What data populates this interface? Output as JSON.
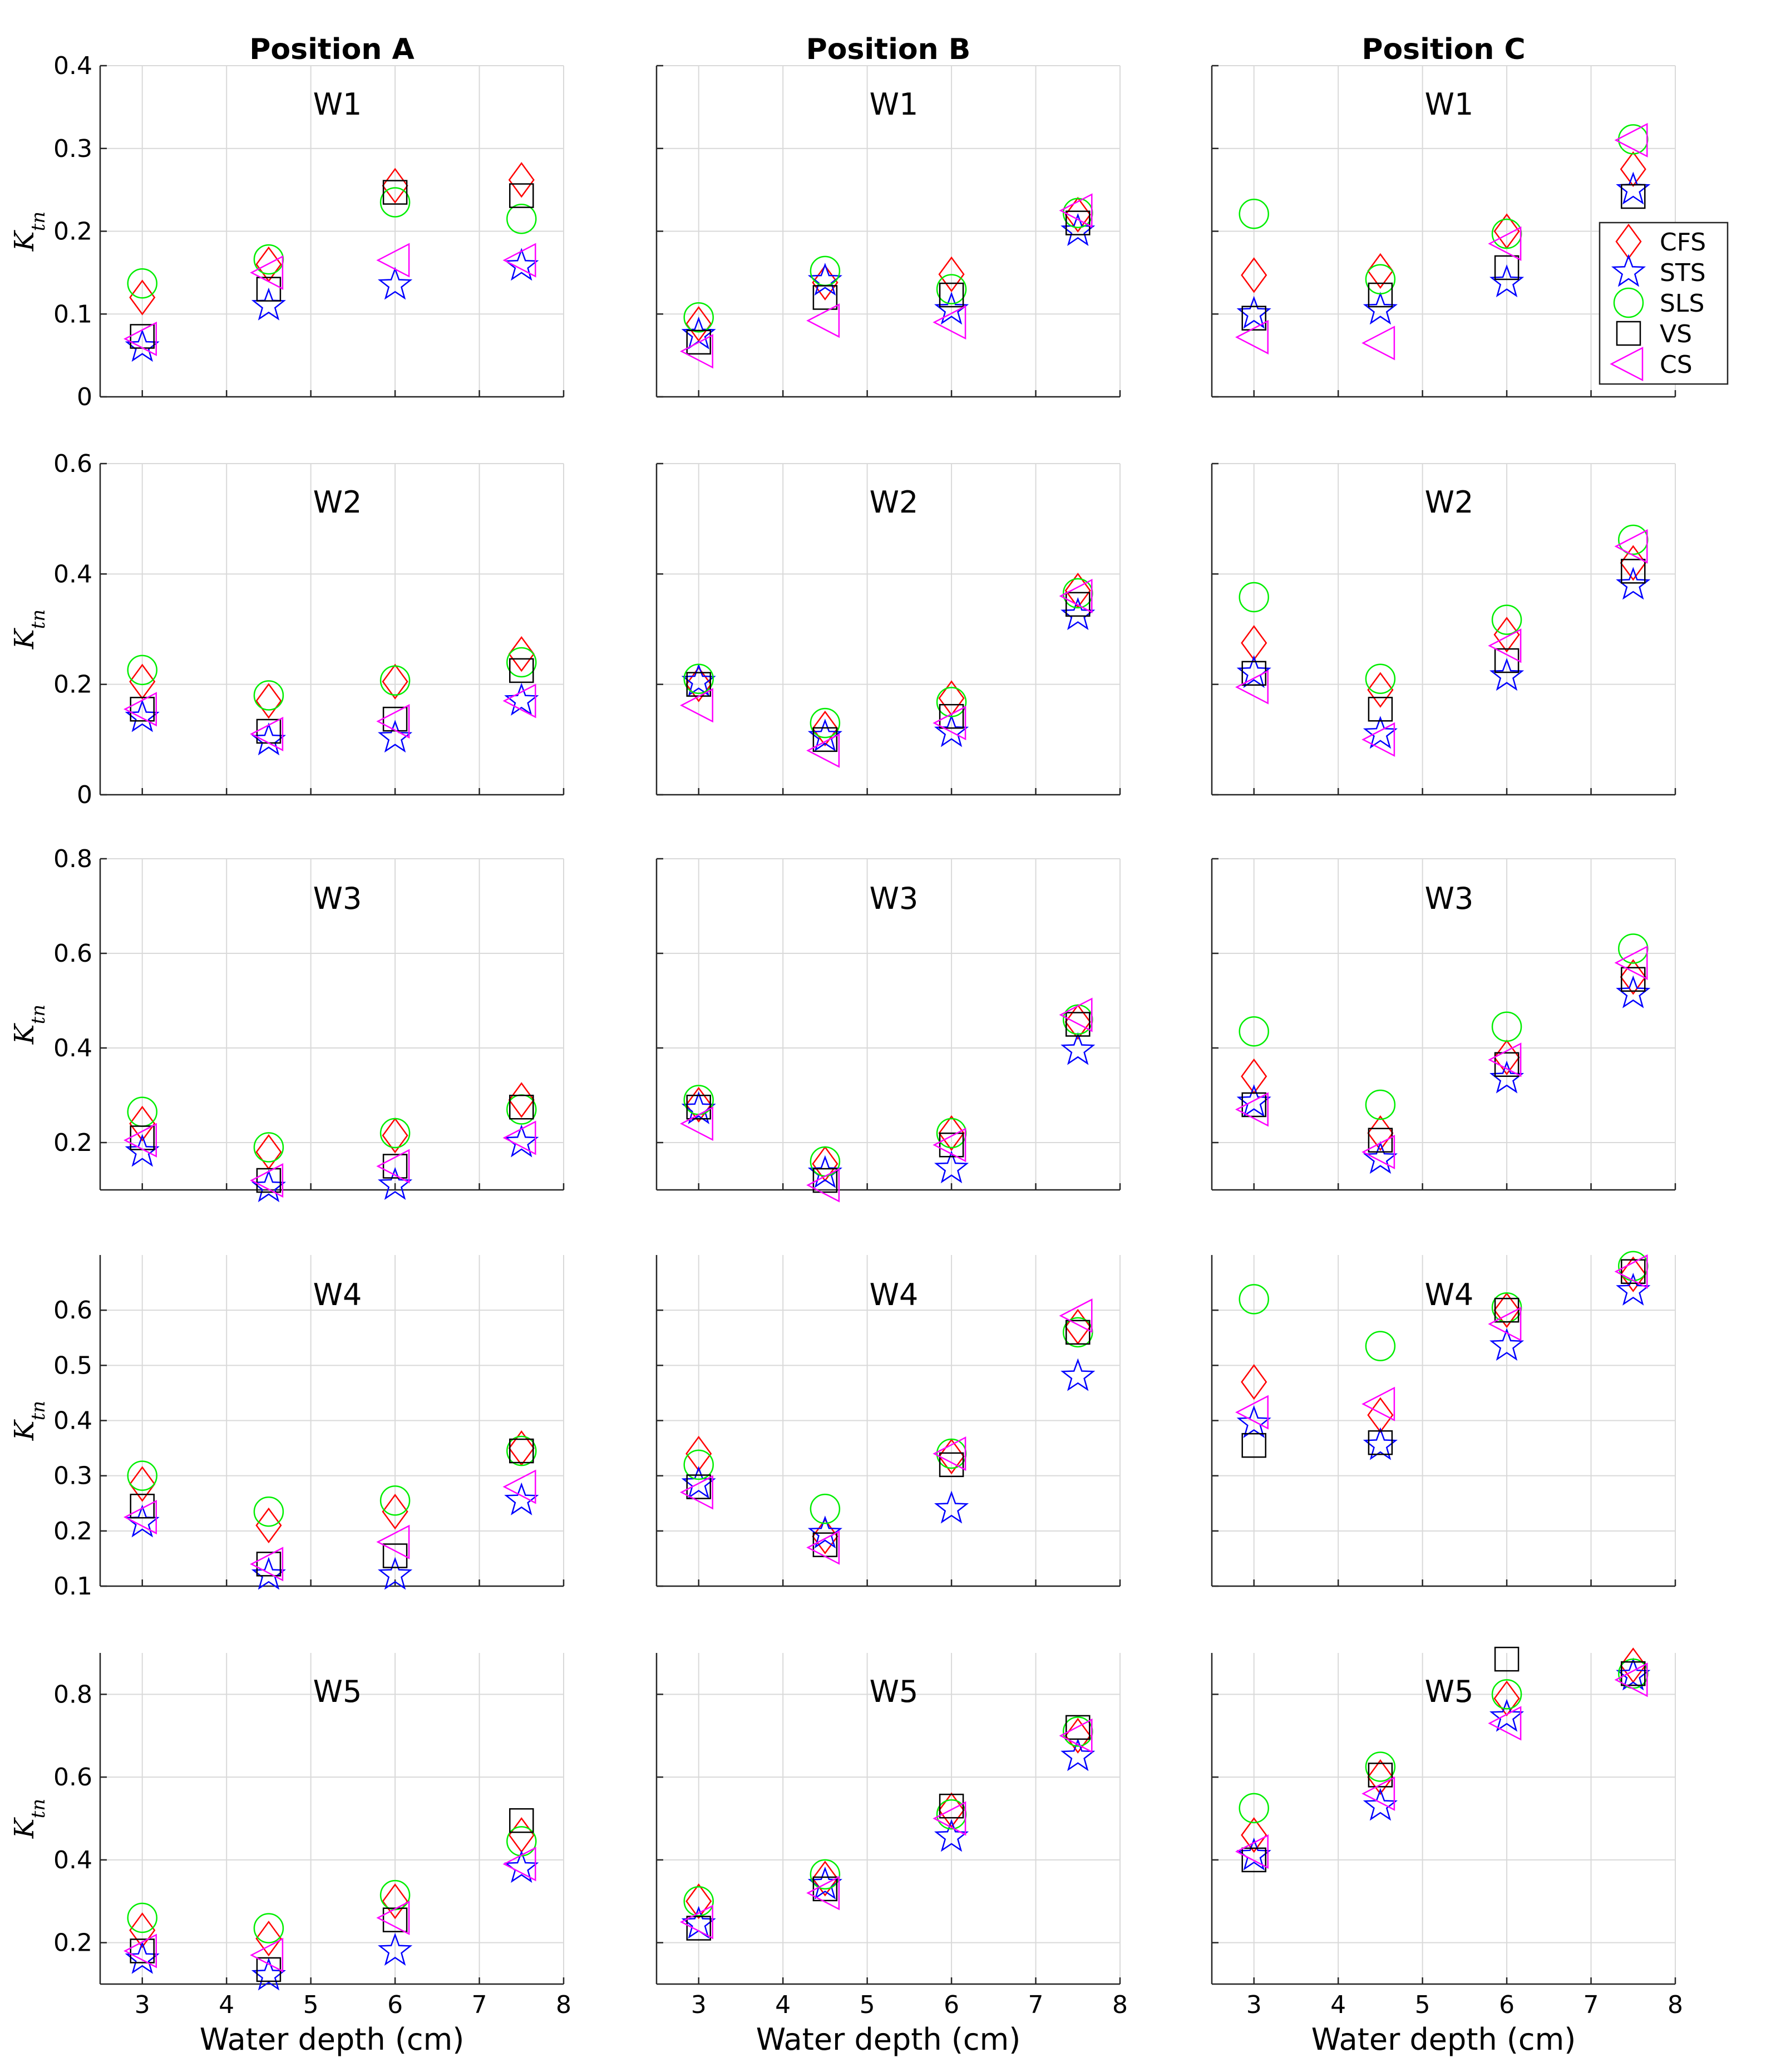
{
  "figure": {
    "x_label": "Water depth (cm)",
    "y_label_main": "K",
    "y_label_sub": "tn"
  },
  "legend": {
    "location": "right of top-right panel",
    "entries": [
      {
        "key": "CFS",
        "label": "CFS",
        "marker": "diamond",
        "color": "#ff0000"
      },
      {
        "key": "STS",
        "label": "STS",
        "marker": "pentagram",
        "color": "#0000ff"
      },
      {
        "key": "SLS",
        "label": "SLS",
        "marker": "circle",
        "color": "#00ee00"
      },
      {
        "key": "VS",
        "label": "VS",
        "marker": "square",
        "color": "#000000"
      },
      {
        "key": "CS",
        "label": "CS",
        "marker": "triangle-left",
        "color": "#ff00ff"
      }
    ]
  },
  "chart_data": [
    {
      "type": "scatter",
      "title": "Position A",
      "label": "W1",
      "xlabel": "",
      "ylabel": "Ktn",
      "xlim": [
        2.5,
        8
      ],
      "ylim": [
        0,
        0.4
      ],
      "xticks": [
        3,
        4,
        5,
        6,
        7,
        8
      ],
      "yticks": [
        0,
        0.1,
        0.2,
        0.3,
        0.4
      ],
      "x": [
        3,
        4.5,
        6,
        7.5
      ],
      "series": [
        {
          "name": "CFS",
          "values": [
            0.12,
            0.16,
            0.255,
            0.262
          ]
        },
        {
          "name": "STS",
          "values": [
            0.06,
            0.11,
            0.135,
            0.158
          ]
        },
        {
          "name": "SLS",
          "values": [
            0.137,
            0.166,
            0.235,
            0.215
          ]
        },
        {
          "name": "VS",
          "values": [
            0.073,
            0.13,
            0.247,
            0.243
          ]
        },
        {
          "name": "CS",
          "values": [
            0.07,
            0.15,
            0.165,
            0.165
          ]
        }
      ]
    },
    {
      "type": "scatter",
      "title": "Position B",
      "label": "W1",
      "xlabel": "",
      "ylabel": "",
      "xlim": [
        2.5,
        8
      ],
      "ylim": [
        0,
        0.4
      ],
      "xticks": [
        3,
        4,
        5,
        6,
        7,
        8
      ],
      "yticks": [
        0,
        0.1,
        0.2,
        0.3,
        0.4
      ],
      "x": [
        3,
        4.5,
        6,
        7.5
      ],
      "series": [
        {
          "name": "CFS",
          "values": [
            0.088,
            0.138,
            0.148,
            0.22
          ]
        },
        {
          "name": "STS",
          "values": [
            0.075,
            0.14,
            0.105,
            0.2
          ]
        },
        {
          "name": "SLS",
          "values": [
            0.096,
            0.152,
            0.13,
            0.222
          ]
        },
        {
          "name": "VS",
          "values": [
            0.066,
            0.12,
            0.123,
            0.21
          ]
        },
        {
          "name": "CS",
          "values": [
            0.055,
            0.092,
            0.09,
            0.225
          ]
        }
      ]
    },
    {
      "type": "scatter",
      "title": "Position C",
      "label": "W1",
      "xlabel": "",
      "ylabel": "",
      "xlim": [
        2.5,
        8
      ],
      "ylim": [
        0,
        0.4
      ],
      "xticks": [
        3,
        4,
        5,
        6,
        7,
        8
      ],
      "yticks": [
        0,
        0.1,
        0.2,
        0.3,
        0.4
      ],
      "x": [
        3,
        4.5,
        6,
        7.5
      ],
      "series": [
        {
          "name": "CFS",
          "values": [
            0.147,
            0.152,
            0.2,
            0.275
          ]
        },
        {
          "name": "STS",
          "values": [
            0.1,
            0.105,
            0.138,
            0.25
          ]
        },
        {
          "name": "SLS",
          "values": [
            0.221,
            0.142,
            0.197,
            0.311
          ]
        },
        {
          "name": "VS",
          "values": [
            0.095,
            0.123,
            0.156,
            0.242
          ]
        },
        {
          "name": "CS",
          "values": [
            0.072,
            0.065,
            0.185,
            0.31
          ]
        }
      ]
    },
    {
      "type": "scatter",
      "title": "",
      "label": "W2",
      "xlabel": "",
      "ylabel": "Ktn",
      "xlim": [
        2.5,
        8
      ],
      "ylim": [
        0,
        0.6
      ],
      "xticks": [
        3,
        4,
        5,
        6,
        7,
        8
      ],
      "yticks": [
        0,
        0.2,
        0.4,
        0.6
      ],
      "x": [
        3,
        4.5,
        6,
        7.5
      ],
      "series": [
        {
          "name": "CFS",
          "values": [
            0.205,
            0.17,
            0.205,
            0.255
          ]
        },
        {
          "name": "STS",
          "values": [
            0.14,
            0.098,
            0.103,
            0.17
          ]
        },
        {
          "name": "SLS",
          "values": [
            0.226,
            0.18,
            0.207,
            0.24
          ]
        },
        {
          "name": "VS",
          "values": [
            0.155,
            0.115,
            0.137,
            0.225
          ]
        },
        {
          "name": "CS",
          "values": [
            0.155,
            0.11,
            0.133,
            0.17
          ]
        }
      ]
    },
    {
      "type": "scatter",
      "title": "",
      "label": "W2",
      "xlabel": "",
      "ylabel": "",
      "xlim": [
        2.5,
        8
      ],
      "ylim": [
        0,
        0.6
      ],
      "xticks": [
        3,
        4,
        5,
        6,
        7,
        8
      ],
      "yticks": [
        0,
        0.2,
        0.4,
        0.6
      ],
      "x": [
        3,
        4.5,
        6,
        7.5
      ],
      "series": [
        {
          "name": "CFS",
          "values": [
            0.2,
            0.12,
            0.175,
            0.37
          ]
        },
        {
          "name": "STS",
          "values": [
            0.205,
            0.105,
            0.113,
            0.325
          ]
        },
        {
          "name": "SLS",
          "values": [
            0.21,
            0.13,
            0.168,
            0.365
          ]
        },
        {
          "name": "VS",
          "values": [
            0.2,
            0.1,
            0.142,
            0.345
          ]
        },
        {
          "name": "CS",
          "values": [
            0.162,
            0.08,
            0.13,
            0.36
          ]
        }
      ]
    },
    {
      "type": "scatter",
      "title": "",
      "label": "W2",
      "xlabel": "",
      "ylabel": "",
      "xlim": [
        2.5,
        8
      ],
      "ylim": [
        0,
        0.6
      ],
      "xticks": [
        3,
        4,
        5,
        6,
        7,
        8
      ],
      "yticks": [
        0,
        0.2,
        0.4,
        0.6
      ],
      "x": [
        3,
        4.5,
        6,
        7.5
      ],
      "series": [
        {
          "name": "CFS",
          "values": [
            0.275,
            0.19,
            0.29,
            0.42
          ]
        },
        {
          "name": "STS",
          "values": [
            0.22,
            0.11,
            0.215,
            0.38
          ]
        },
        {
          "name": "SLS",
          "values": [
            0.358,
            0.21,
            0.317,
            0.462
          ]
        },
        {
          "name": "VS",
          "values": [
            0.22,
            0.155,
            0.243,
            0.405
          ]
        },
        {
          "name": "CS",
          "values": [
            0.195,
            0.1,
            0.27,
            0.45
          ]
        }
      ]
    },
    {
      "type": "scatter",
      "title": "",
      "label": "W3",
      "xlabel": "",
      "ylabel": "Ktn",
      "xlim": [
        2.5,
        8
      ],
      "ylim": [
        0.1,
        0.8
      ],
      "xticks": [
        3,
        4,
        5,
        6,
        7,
        8
      ],
      "yticks": [
        0.2,
        0.4,
        0.6,
        0.8
      ],
      "x": [
        3,
        4.5,
        6,
        7.5
      ],
      "series": [
        {
          "name": "CFS",
          "values": [
            0.24,
            0.18,
            0.215,
            0.29
          ]
        },
        {
          "name": "STS",
          "values": [
            0.18,
            0.105,
            0.11,
            0.2
          ]
        },
        {
          "name": "SLS",
          "values": [
            0.265,
            0.19,
            0.22,
            0.27
          ]
        },
        {
          "name": "VS",
          "values": [
            0.21,
            0.12,
            0.15,
            0.275
          ]
        },
        {
          "name": "CS",
          "values": [
            0.205,
            0.12,
            0.15,
            0.21
          ]
        }
      ]
    },
    {
      "type": "scatter",
      "title": "",
      "label": "W3",
      "xlabel": "",
      "ylabel": "",
      "xlim": [
        2.5,
        8
      ],
      "ylim": [
        0.1,
        0.8
      ],
      "xticks": [
        3,
        4,
        5,
        6,
        7,
        8
      ],
      "yticks": [
        0.2,
        0.4,
        0.6,
        0.8
      ],
      "x": [
        3,
        4.5,
        6,
        7.5
      ],
      "series": [
        {
          "name": "CFS",
          "values": [
            0.28,
            0.155,
            0.22,
            0.455
          ]
        },
        {
          "name": "STS",
          "values": [
            0.27,
            0.135,
            0.145,
            0.395
          ]
        },
        {
          "name": "SLS",
          "values": [
            0.29,
            0.16,
            0.22,
            0.46
          ]
        },
        {
          "name": "VS",
          "values": [
            0.275,
            0.12,
            0.195,
            0.45
          ]
        },
        {
          "name": "CS",
          "values": [
            0.24,
            0.11,
            0.195,
            0.47
          ]
        }
      ]
    },
    {
      "type": "scatter",
      "title": "",
      "label": "W3",
      "xlabel": "",
      "ylabel": "",
      "xlim": [
        2.5,
        8
      ],
      "ylim": [
        0.1,
        0.8
      ],
      "xticks": [
        3,
        4,
        5,
        6,
        7,
        8
      ],
      "yticks": [
        0.2,
        0.4,
        0.6,
        0.8
      ],
      "x": [
        3,
        4.5,
        6,
        7.5
      ],
      "series": [
        {
          "name": "CFS",
          "values": [
            0.34,
            0.22,
            0.38,
            0.55
          ]
        },
        {
          "name": "STS",
          "values": [
            0.285,
            0.165,
            0.335,
            0.515
          ]
        },
        {
          "name": "SLS",
          "values": [
            0.435,
            0.28,
            0.445,
            0.61
          ]
        },
        {
          "name": "VS",
          "values": [
            0.28,
            0.205,
            0.365,
            0.545
          ]
        },
        {
          "name": "CS",
          "values": [
            0.27,
            0.18,
            0.375,
            0.58
          ]
        }
      ]
    },
    {
      "type": "scatter",
      "title": "",
      "label": "W4",
      "xlabel": "",
      "ylabel": "Ktn",
      "xlim": [
        2.5,
        8
      ],
      "ylim": [
        0.1,
        0.7
      ],
      "xticks": [
        3,
        4,
        5,
        6,
        7,
        8
      ],
      "yticks": [
        0.1,
        0.2,
        0.3,
        0.4,
        0.5,
        0.6
      ],
      "x": [
        3,
        4.5,
        6,
        7.5
      ],
      "series": [
        {
          "name": "CFS",
          "values": [
            0.285,
            0.21,
            0.235,
            0.35
          ]
        },
        {
          "name": "STS",
          "values": [
            0.215,
            0.12,
            0.12,
            0.255
          ]
        },
        {
          "name": "SLS",
          "values": [
            0.3,
            0.235,
            0.255,
            0.345
          ]
        },
        {
          "name": "VS",
          "values": [
            0.245,
            0.14,
            0.155,
            0.345
          ]
        },
        {
          "name": "CS",
          "values": [
            0.225,
            0.14,
            0.18,
            0.28
          ]
        }
      ]
    },
    {
      "type": "scatter",
      "title": "",
      "label": "W4",
      "xlabel": "",
      "ylabel": "",
      "xlim": [
        2.5,
        8
      ],
      "ylim": [
        0.1,
        0.7
      ],
      "xticks": [
        3,
        4,
        5,
        6,
        7,
        8
      ],
      "yticks": [
        0.1,
        0.2,
        0.3,
        0.4,
        0.5,
        0.6
      ],
      "x": [
        3,
        4.5,
        6,
        7.5
      ],
      "series": [
        {
          "name": "CFS",
          "values": [
            0.34,
            0.19,
            0.335,
            0.57
          ]
        },
        {
          "name": "STS",
          "values": [
            0.285,
            0.195,
            0.24,
            0.48
          ]
        },
        {
          "name": "SLS",
          "values": [
            0.32,
            0.24,
            0.34,
            0.56
          ]
        },
        {
          "name": "VS",
          "values": [
            0.28,
            0.175,
            0.32,
            0.56
          ]
        },
        {
          "name": "CS",
          "values": [
            0.27,
            0.17,
            0.34,
            0.59
          ]
        }
      ]
    },
    {
      "type": "scatter",
      "title": "",
      "label": "W4",
      "xlabel": "",
      "ylabel": "",
      "xlim": [
        2.5,
        8
      ],
      "ylim": [
        0.1,
        0.7
      ],
      "xticks": [
        3,
        4,
        5,
        6,
        7,
        8
      ],
      "yticks": [
        0.1,
        0.2,
        0.3,
        0.4,
        0.5,
        0.6
      ],
      "x": [
        3,
        4.5,
        6,
        7.5
      ],
      "series": [
        {
          "name": "CFS",
          "values": [
            0.47,
            0.41,
            0.6,
            0.665
          ]
        },
        {
          "name": "STS",
          "values": [
            0.395,
            0.355,
            0.535,
            0.635
          ]
        },
        {
          "name": "SLS",
          "values": [
            0.62,
            0.535,
            0.605,
            0.68
          ]
        },
        {
          "name": "VS",
          "values": [
            0.355,
            0.36,
            0.6,
            0.67
          ]
        },
        {
          "name": "CS",
          "values": [
            0.415,
            0.43,
            0.575,
            0.67
          ]
        }
      ]
    },
    {
      "type": "scatter",
      "title": "",
      "label": "W5",
      "xlabel": "Water depth (cm)",
      "ylabel": "Ktn",
      "xlim": [
        2.5,
        8
      ],
      "ylim": [
        0.1,
        0.9
      ],
      "xticks": [
        3,
        4,
        5,
        6,
        7,
        8
      ],
      "yticks": [
        0.2,
        0.4,
        0.6,
        0.8
      ],
      "x": [
        3,
        4.5,
        6,
        7.5
      ],
      "series": [
        {
          "name": "CFS",
          "values": [
            0.23,
            0.21,
            0.3,
            0.46
          ]
        },
        {
          "name": "STS",
          "values": [
            0.16,
            0.12,
            0.18,
            0.38
          ]
        },
        {
          "name": "SLS",
          "values": [
            0.26,
            0.235,
            0.315,
            0.445
          ]
        },
        {
          "name": "VS",
          "values": [
            0.18,
            0.135,
            0.255,
            0.495
          ]
        },
        {
          "name": "CS",
          "values": [
            0.18,
            0.17,
            0.26,
            0.39
          ]
        }
      ]
    },
    {
      "type": "scatter",
      "title": "",
      "label": "W5",
      "xlabel": "Water depth (cm)",
      "ylabel": "",
      "xlim": [
        2.5,
        8
      ],
      "ylim": [
        0.1,
        0.9
      ],
      "xticks": [
        3,
        4,
        5,
        6,
        7,
        8
      ],
      "yticks": [
        0.2,
        0.4,
        0.6,
        0.8
      ],
      "x": [
        3,
        4.5,
        6,
        7.5
      ],
      "series": [
        {
          "name": "CFS",
          "values": [
            0.3,
            0.355,
            0.52,
            0.7
          ]
        },
        {
          "name": "STS",
          "values": [
            0.245,
            0.34,
            0.455,
            0.65
          ]
        },
        {
          "name": "SLS",
          "values": [
            0.3,
            0.365,
            0.51,
            0.71
          ]
        },
        {
          "name": "VS",
          "values": [
            0.235,
            0.33,
            0.53,
            0.72
          ]
        },
        {
          "name": "CS",
          "values": [
            0.25,
            0.32,
            0.5,
            0.7
          ]
        }
      ]
    },
    {
      "type": "scatter",
      "title": "",
      "label": "W5",
      "xlabel": "Water depth (cm)",
      "ylabel": "",
      "xlim": [
        2.5,
        8
      ],
      "ylim": [
        0.1,
        0.9
      ],
      "xticks": [
        3,
        4,
        5,
        6,
        7,
        8
      ],
      "yticks": [
        0.2,
        0.4,
        0.6,
        0.8
      ],
      "x": [
        3,
        4.5,
        6,
        7.5
      ],
      "series": [
        {
          "name": "CFS",
          "values": [
            0.46,
            0.6,
            0.79,
            0.87
          ]
        },
        {
          "name": "STS",
          "values": [
            0.41,
            0.53,
            0.745,
            0.845
          ]
        },
        {
          "name": "SLS",
          "values": [
            0.525,
            0.625,
            0.8,
            0.85
          ]
        },
        {
          "name": "VS",
          "values": [
            0.4,
            0.605,
            0.885,
            0.85
          ]
        },
        {
          "name": "CS",
          "values": [
            0.42,
            0.56,
            0.73,
            0.835
          ]
        }
      ]
    }
  ]
}
